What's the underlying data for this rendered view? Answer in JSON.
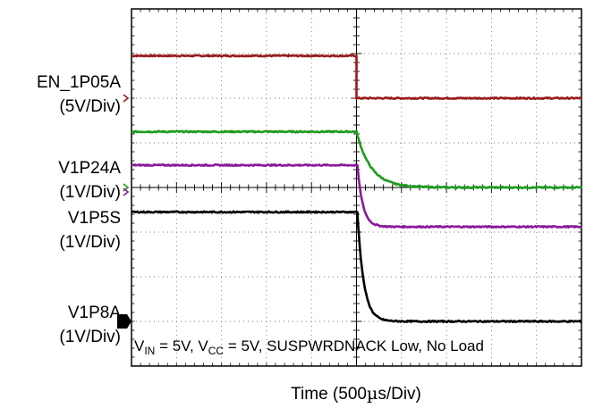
{
  "chart_data": {
    "type": "line",
    "title": "",
    "xlabel": "Time (500µs/Div)",
    "xlabel_parts": {
      "main": "Time  (500",
      "unit_mu": "µ",
      "unit_rest": "s/Div)"
    },
    "ylabel": "",
    "grid": true,
    "divisions": {
      "x": 10,
      "y": 8
    },
    "x_unit": "div",
    "y_unit": "div",
    "xlim": [
      0,
      10
    ],
    "ylim": [
      0,
      8
    ],
    "event_x": 5,
    "series": [
      {
        "name": "EN_1P05A",
        "label_line1": "EN_1P05A",
        "label_line2": "(5V/Div)",
        "color": "#9a1c1c",
        "marker_y": 6.0,
        "marker_style": "chevron",
        "initial": 6.95,
        "final": 6.0,
        "tau": 0.0,
        "delay": 0.0
      },
      {
        "name": "V1P24A",
        "label_line1": "V1P24A",
        "label_line2": "(1V/Div)",
        "color": "#1e9b1e",
        "marker_y": 4.0,
        "marker_style": "chevron",
        "initial": 5.25,
        "final": 4.0,
        "tau": 0.32,
        "delay": 0.0
      },
      {
        "name": "V1P5S",
        "label_line1": "V1P5S",
        "label_line2": "(1V/Div)",
        "color": "#8a1a9a",
        "marker_y": 3.9,
        "marker_style": "chevron",
        "initial": 4.5,
        "final": 3.12,
        "tau": 0.12,
        "delay": 0.02
      },
      {
        "name": "V1P8A",
        "label_line1": "V1P8A",
        "label_line2": "(1V/Div)",
        "color": "#000000",
        "marker_y": 1.0,
        "marker_style": "filled",
        "initial": 3.45,
        "final": 1.0,
        "tau": 0.14,
        "delay": 0.02
      }
    ],
    "annotation": {
      "v_main": "V",
      "v_sub": "IN",
      "v_value": " = 5V, ",
      "c_main": "V",
      "c_sub": "CC",
      "c_value": " = 5V, SUSPWRDNACK Low, No Load"
    }
  }
}
